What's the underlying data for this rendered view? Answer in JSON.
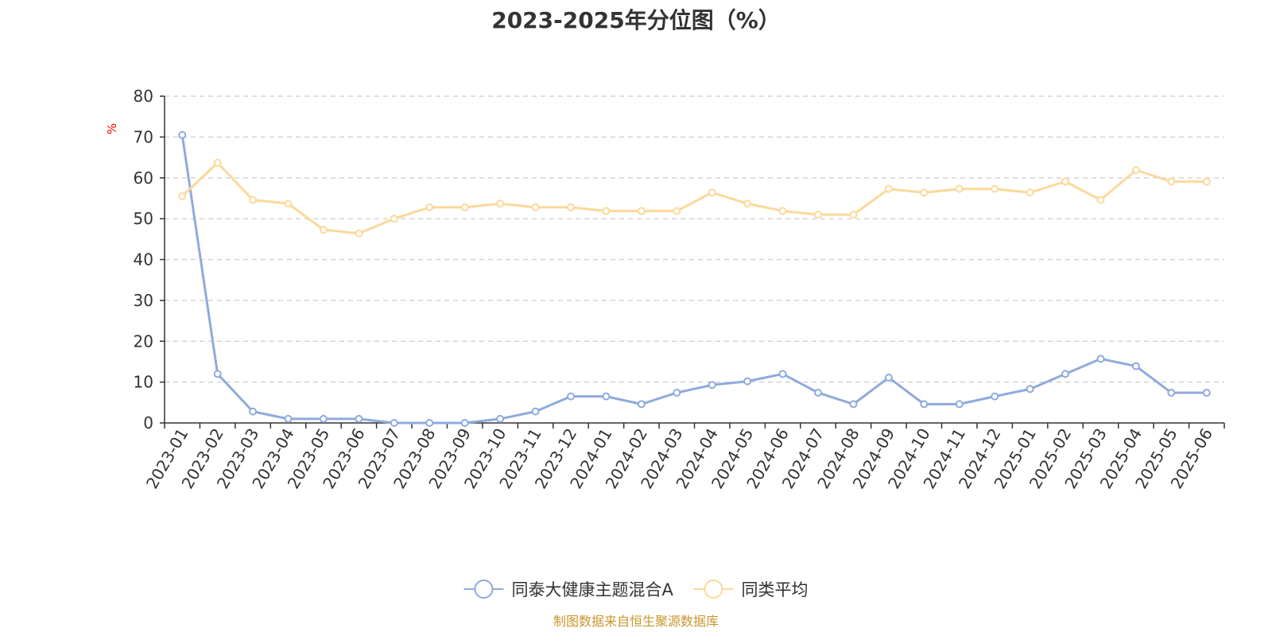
{
  "chart_data": {
    "type": "line",
    "title": "2023-2025年分位图（%）",
    "ylabel": "%",
    "ylim": [
      0,
      80
    ],
    "yticks": [
      "0",
      "10",
      "20",
      "30",
      "40",
      "50",
      "60",
      "70",
      "80"
    ],
    "grid": true,
    "legend_position": "bottom",
    "categories": [
      "2023-01",
      "2023-02",
      "2023-03",
      "2023-04",
      "2023-05",
      "2023-06",
      "2023-07",
      "2023-08",
      "2023-09",
      "2023-10",
      "2023-11",
      "2023-12",
      "2024-01",
      "2024-02",
      "2024-03",
      "2024-04",
      "2024-05",
      "2024-06",
      "2024-07",
      "2024-08",
      "2024-09",
      "2024-10",
      "2024-11",
      "2024-12",
      "2025-01",
      "2025-02",
      "2025-03",
      "2025-04",
      "2025-05",
      "2025-06"
    ],
    "series": [
      {
        "name": "同泰大健康主题混合A",
        "color": "#8faadc",
        "values": [
          70.5,
          12,
          2.8,
          1,
          1,
          1,
          0,
          0,
          0,
          1,
          2.8,
          6.5,
          6.5,
          4.6,
          7.4,
          9.3,
          10.2,
          12,
          7.4,
          4.6,
          11.1,
          4.6,
          4.6,
          6.5,
          8.3,
          12,
          15.7,
          13.9,
          7.4,
          7.4
        ]
      },
      {
        "name": "同类平均",
        "color": "#fbd99a",
        "values": [
          55.5,
          63.7,
          54.6,
          53.7,
          47.3,
          46.4,
          50,
          52.8,
          52.8,
          53.7,
          52.8,
          52.8,
          51.9,
          51.9,
          51.9,
          56.4,
          53.7,
          51.9,
          51,
          51,
          57.3,
          56.4,
          57.3,
          57.3,
          56.4,
          59.1,
          54.6,
          61.9,
          59.1,
          59.1
        ]
      }
    ]
  },
  "source_note": "制图数据来自恒生聚源数据库"
}
